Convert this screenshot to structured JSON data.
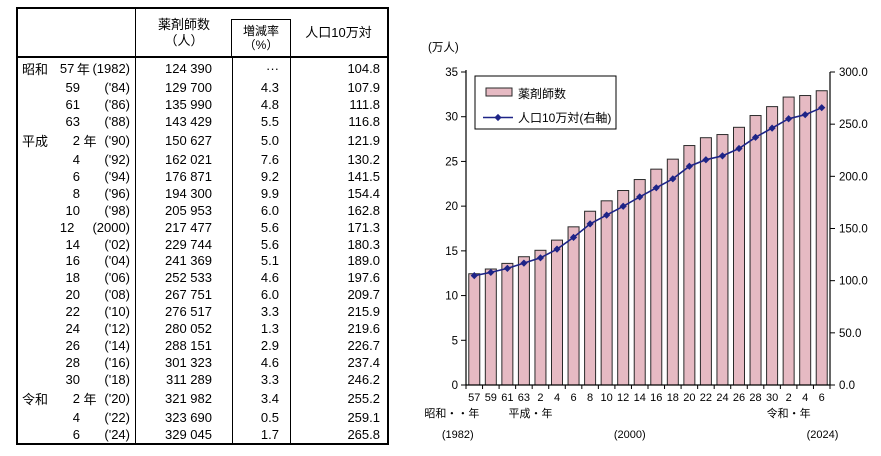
{
  "table": {
    "header": {
      "year_col": "",
      "count_line1": "薬剤師数",
      "count_line2": "（人）",
      "rate_line1": "増減率",
      "rate_line2": "（%）",
      "per_line1": "人口10万対"
    },
    "rows": [
      {
        "era": "昭和",
        "num": "57",
        "unit": "年",
        "west": "(1982)",
        "count": "124 390",
        "rate": "···",
        "per": "104.8"
      },
      {
        "era": "",
        "num": "59",
        "unit": "",
        "west": "('84)",
        "count": "129 700",
        "rate": "4.3",
        "per": "107.9"
      },
      {
        "era": "",
        "num": "61",
        "unit": "",
        "west": "('86)",
        "count": "135 990",
        "rate": "4.8",
        "per": "111.8"
      },
      {
        "era": "",
        "num": "63",
        "unit": "",
        "west": "('88)",
        "count": "143 429",
        "rate": "5.5",
        "per": "116.8"
      },
      {
        "era": "平成",
        "num": "2",
        "unit": "年",
        "west": "('90)",
        "count": "150 627",
        "rate": "5.0",
        "per": "121.9"
      },
      {
        "era": "",
        "num": "4",
        "unit": "",
        "west": "('92)",
        "count": "162 021",
        "rate": "7.6",
        "per": "130.2"
      },
      {
        "era": "",
        "num": "6",
        "unit": "",
        "west": "('94)",
        "count": "176 871",
        "rate": "9.2",
        "per": "141.5"
      },
      {
        "era": "",
        "num": "8",
        "unit": "",
        "west": "('96)",
        "count": "194 300",
        "rate": "9.9",
        "per": "154.4"
      },
      {
        "era": "",
        "num": "10",
        "unit": "",
        "west": "('98)",
        "count": "205 953",
        "rate": "6.0",
        "per": "162.8"
      },
      {
        "era": "",
        "num": "12",
        "unit": "",
        "west": "(2000)",
        "count": "217 477",
        "rate": "5.6",
        "per": "171.3"
      },
      {
        "era": "",
        "num": "14",
        "unit": "",
        "west": "('02)",
        "count": "229 744",
        "rate": "5.6",
        "per": "180.3"
      },
      {
        "era": "",
        "num": "16",
        "unit": "",
        "west": "('04)",
        "count": "241 369",
        "rate": "5.1",
        "per": "189.0"
      },
      {
        "era": "",
        "num": "18",
        "unit": "",
        "west": "('06)",
        "count": "252 533",
        "rate": "4.6",
        "per": "197.6"
      },
      {
        "era": "",
        "num": "20",
        "unit": "",
        "west": "('08)",
        "count": "267 751",
        "rate": "6.0",
        "per": "209.7"
      },
      {
        "era": "",
        "num": "22",
        "unit": "",
        "west": "('10)",
        "count": "276 517",
        "rate": "3.3",
        "per": "215.9"
      },
      {
        "era": "",
        "num": "24",
        "unit": "",
        "west": "('12)",
        "count": "280 052",
        "rate": "1.3",
        "per": "219.6"
      },
      {
        "era": "",
        "num": "26",
        "unit": "",
        "west": "('14)",
        "count": "288 151",
        "rate": "2.9",
        "per": "226.7"
      },
      {
        "era": "",
        "num": "28",
        "unit": "",
        "west": "('16)",
        "count": "301 323",
        "rate": "4.6",
        "per": "237.4"
      },
      {
        "era": "",
        "num": "30",
        "unit": "",
        "west": "('18)",
        "count": "311 289",
        "rate": "3.3",
        "per": "246.2"
      },
      {
        "era": "令和",
        "num": "2",
        "unit": "年",
        "west": "('20)",
        "count": "321 982",
        "rate": "3.4",
        "per": "255.2"
      },
      {
        "era": "",
        "num": "4",
        "unit": "",
        "west": "('22)",
        "count": "323 690",
        "rate": "0.5",
        "per": "259.1"
      },
      {
        "era": "",
        "num": "6",
        "unit": "",
        "west": "('24)",
        "count": "329 045",
        "rate": "1.7",
        "per": "265.8"
      }
    ]
  },
  "chart_data": {
    "type": "bar",
    "title": "",
    "unit_label": "(万人)",
    "categories": [
      "57",
      "59",
      "61",
      "63",
      "2",
      "4",
      "6",
      "8",
      "10",
      "12",
      "14",
      "16",
      "18",
      "20",
      "22",
      "24",
      "26",
      "28",
      "30",
      "2",
      "4",
      "6"
    ],
    "series": [
      {
        "name": "薬剤師数",
        "kind": "bar",
        "axis": "left",
        "values": [
          12.439,
          12.97,
          13.599,
          14.3429,
          15.0627,
          16.2021,
          17.6871,
          19.43,
          20.5953,
          21.7477,
          22.9744,
          24.1369,
          25.2533,
          26.7751,
          27.6517,
          28.0052,
          28.8151,
          30.1323,
          31.1289,
          32.1982,
          32.369,
          32.9045
        ]
      },
      {
        "name": "人口10万対(右軸)",
        "kind": "line",
        "axis": "right",
        "values": [
          104.8,
          107.9,
          111.8,
          116.8,
          121.9,
          130.2,
          141.5,
          154.4,
          162.8,
          171.3,
          180.3,
          189.0,
          197.6,
          209.7,
          215.9,
          219.6,
          226.7,
          237.4,
          246.2,
          255.2,
          259.1,
          265.8
        ]
      }
    ],
    "left_axis": {
      "label": "(万人)",
      "min": 0,
      "max": 35,
      "step": 5,
      "ticks": [
        "0",
        "5",
        "10",
        "15",
        "20",
        "25",
        "30",
        "35"
      ]
    },
    "right_axis": {
      "min": 0,
      "max": 300,
      "step": 50,
      "ticks": [
        "0.0",
        "50.0",
        "100.0",
        "150.0",
        "200.0",
        "250.0",
        "300.0"
      ]
    },
    "legend": {
      "bar_label": "薬剤師数",
      "line_label": "人口10万対(右軸)",
      "position": "top-left"
    },
    "era_annotations": [
      {
        "text": "昭和・・年",
        "slot": -1.35,
        "row": 1
      },
      {
        "text": "(1982)",
        "slot": -1.0,
        "row": 2
      },
      {
        "text": "平成・年",
        "slot": 3.4,
        "row": 1
      },
      {
        "text": "(2000)",
        "slot": 9.4,
        "row": 2
      },
      {
        "text": "令和・年",
        "slot": 19.0,
        "row": 1
      },
      {
        "text": "(2024)",
        "slot": 21.05,
        "row": 2
      }
    ],
    "grid": false,
    "colors": {
      "bar_fill": "#e6bac3",
      "bar_stroke": "#2a2a2a",
      "line": "#1e2487",
      "axis": "#000000",
      "legend_border": "#000000"
    }
  }
}
